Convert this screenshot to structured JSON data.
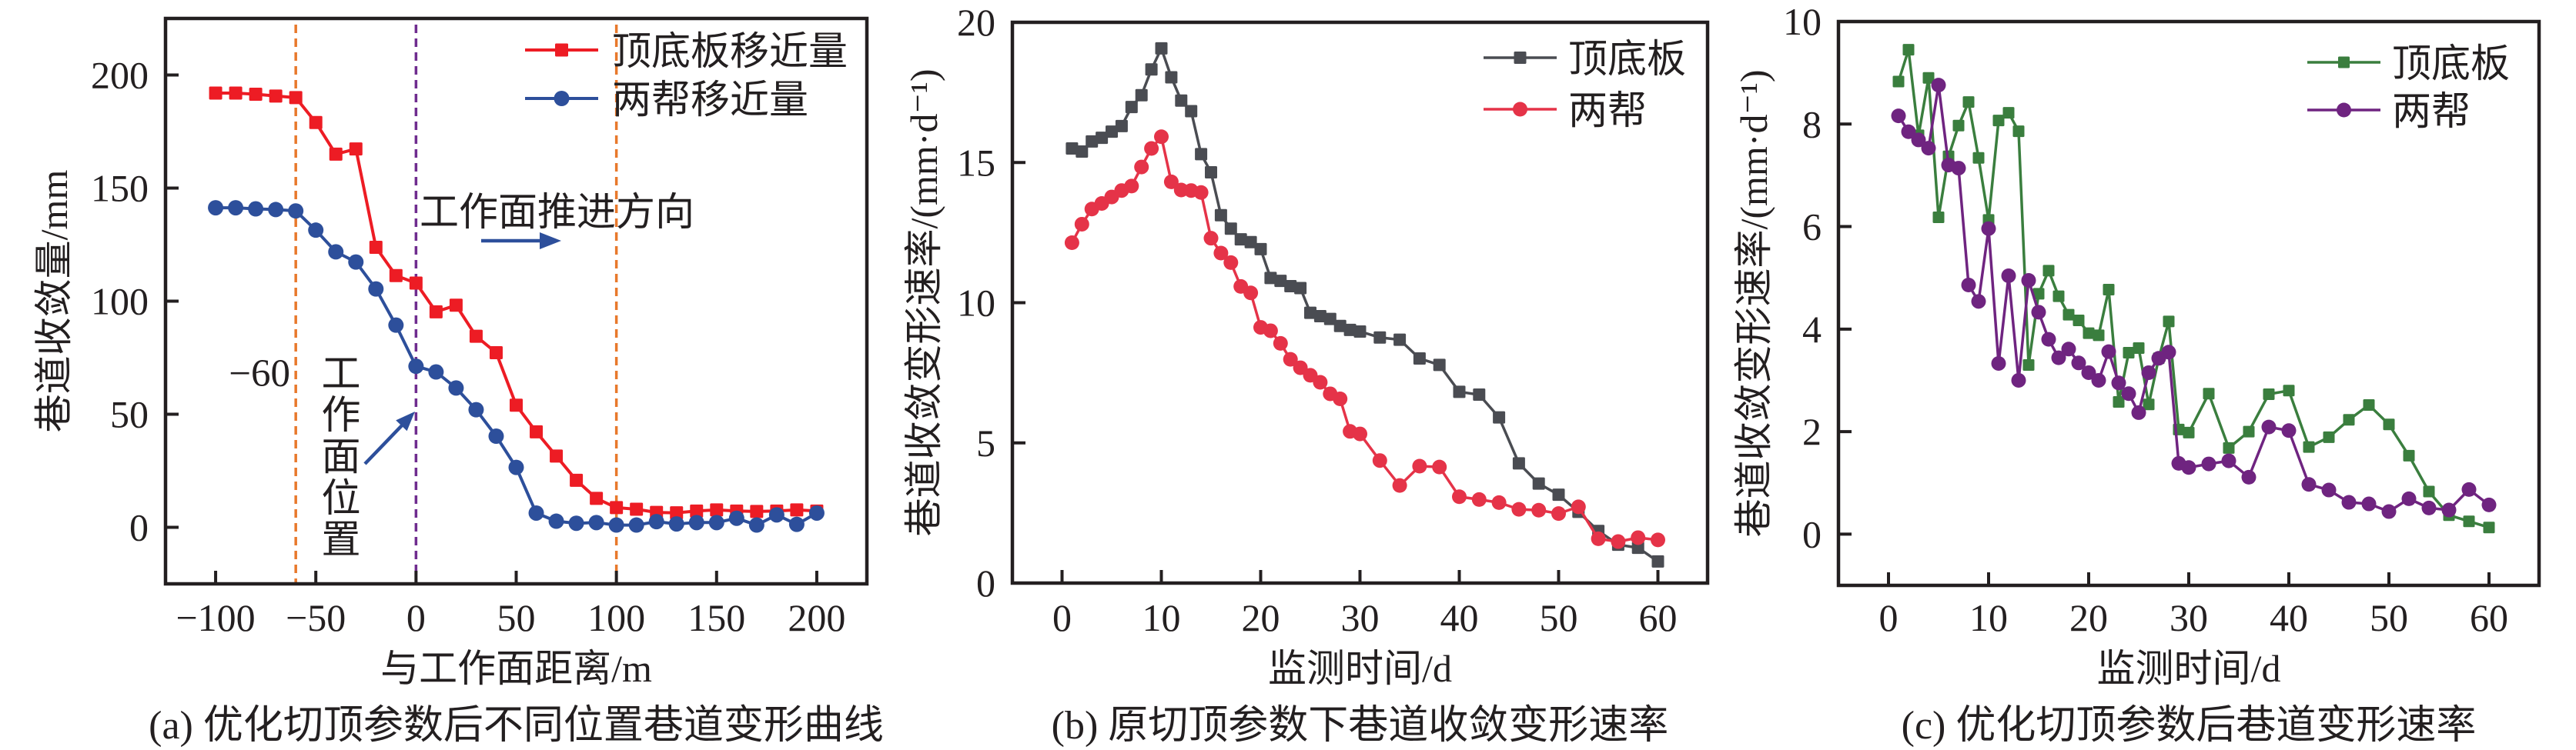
{
  "figure": {
    "text_color": "#231f20",
    "axis_color": "#231f20"
  },
  "chart_data": [
    {
      "id": "a",
      "type": "line",
      "title": "(a) 优化切顶参数后不同位置巷道变形曲线",
      "xlabel": "与工作面距离/m",
      "ylabel": "巷道收敛量/mm",
      "xlim": [
        -125,
        225
      ],
      "ylim": [
        -25,
        225
      ],
      "xticks": [
        -100,
        -50,
        0,
        50,
        100,
        150,
        200
      ],
      "xtick_labels": [
        "−100",
        "−50",
        "0",
        "50",
        "100",
        "150",
        "200"
      ],
      "yticks": [
        0,
        50,
        100,
        150,
        200
      ],
      "ytick_labels": [
        "0",
        "50",
        "100",
        "150",
        "200"
      ],
      "grid": false,
      "legend_position": "top-right",
      "x": [
        -100,
        -90,
        -80,
        -70,
        -60,
        -50,
        -40,
        -30,
        -20,
        -10,
        0,
        10,
        20,
        30,
        40,
        50,
        60,
        70,
        80,
        90,
        100,
        110,
        120,
        130,
        140,
        150,
        160,
        170,
        180,
        190,
        200
      ],
      "series": [
        {
          "name": "顶底板移近量",
          "marker": "square",
          "color": "#ed1c24",
          "values": [
            192.0,
            192.0,
            191.5,
            190.7,
            190.0,
            179.0,
            165.0,
            167.3,
            123.8,
            111.3,
            108.0,
            95.3,
            98.2,
            84.5,
            77.2,
            54.0,
            42.2,
            31.5,
            20.8,
            12.8,
            8.7,
            8.0,
            6.6,
            6.4,
            7.2,
            7.7,
            7.2,
            7.0,
            7.2,
            7.7,
            7.2
          ]
        },
        {
          "name": "两帮移近量",
          "marker": "circle",
          "color": "#2d4f9b",
          "values": [
            141.3,
            141.3,
            140.8,
            140.5,
            139.9,
            131.4,
            121.8,
            117.3,
            105.4,
            89.4,
            71.2,
            68.7,
            61.6,
            52.0,
            40.3,
            26.5,
            6.3,
            2.7,
            1.8,
            2.1,
            1.0,
            1.0,
            2.5,
            1.5,
            2.1,
            2.1,
            4.0,
            1.0,
            5.5,
            1.3,
            6.3
          ]
        }
      ],
      "reference_lines": [
        {
          "x": -60,
          "color": "#e8792c",
          "style": "dashed"
        },
        {
          "x": 0,
          "color": "#6f2c8f",
          "style": "dashed"
        },
        {
          "x": 100,
          "color": "#e8792c",
          "style": "dashed"
        }
      ],
      "annotations": [
        {
          "text": "−60"
        },
        {
          "text": "工作面位置"
        },
        {
          "text": "工作面推进方向"
        }
      ],
      "annotation_arrow_color": "#2d4f9b"
    },
    {
      "id": "b",
      "type": "line",
      "title": "(b) 原切顶参数下巷道收敛变形速率",
      "xlabel": "监测时间/d",
      "ylabel": "巷道收敛变形速率/(mm·d⁻¹)",
      "xlim": [
        -5,
        65
      ],
      "ylim": [
        0,
        20
      ],
      "xticks": [
        0,
        10,
        20,
        30,
        40,
        50,
        60
      ],
      "xtick_labels": [
        "0",
        "10",
        "20",
        "30",
        "40",
        "50",
        "60"
      ],
      "yticks": [
        0,
        5,
        10,
        15,
        20
      ],
      "ytick_labels": [
        "0",
        "5",
        "10",
        "15",
        "20"
      ],
      "grid": false,
      "legend_position": "top-right",
      "x": [
        1,
        2,
        3,
        4,
        5,
        6,
        7,
        8,
        9,
        10,
        11,
        12,
        13,
        14,
        15,
        16,
        17,
        18,
        19,
        20,
        21,
        22,
        23,
        24,
        25,
        26,
        27,
        28,
        29,
        30,
        32,
        34,
        36,
        38,
        40,
        42,
        44,
        46,
        48,
        50,
        52,
        54,
        56,
        58,
        60
      ],
      "series": [
        {
          "name": "顶底板",
          "marker": "square",
          "color": "#4a4c52",
          "values": [
            15.5,
            15.39,
            15.75,
            15.88,
            16.1,
            16.3,
            16.98,
            17.4,
            18.32,
            19.07,
            18.04,
            17.21,
            16.83,
            15.3,
            14.65,
            13.12,
            12.64,
            12.26,
            12.16,
            11.91,
            10.88,
            10.78,
            10.59,
            10.52,
            9.64,
            9.52,
            9.42,
            9.17,
            9.03,
            8.97,
            8.76,
            8.68,
            8.01,
            7.78,
            6.82,
            6.72,
            5.91,
            4.27,
            3.55,
            3.15,
            2.54,
            1.86,
            1.37,
            1.26,
            0.77
          ]
        },
        {
          "name": "两帮",
          "marker": "circle",
          "color": "#e53348",
          "values": [
            12.14,
            12.8,
            13.34,
            13.54,
            13.77,
            14.0,
            14.16,
            14.84,
            15.5,
            15.92,
            14.31,
            14.02,
            14.0,
            13.93,
            12.3,
            11.77,
            11.43,
            10.58,
            10.35,
            9.12,
            9.0,
            8.55,
            7.98,
            7.68,
            7.41,
            7.16,
            6.75,
            6.57,
            5.41,
            5.32,
            4.37,
            3.48,
            4.17,
            4.14,
            3.08,
            2.98,
            2.87,
            2.63,
            2.6,
            2.48,
            2.72,
            1.58,
            1.48,
            1.62,
            1.54
          ]
        }
      ]
    },
    {
      "id": "c",
      "type": "line",
      "title": "(c) 优化切顶参数后巷道变形速率",
      "xlabel": "监测时间/d",
      "ylabel": "巷道收敛变形速率/(mm·d⁻¹)",
      "xlim": [
        -5,
        65
      ],
      "ylim": [
        -1,
        10
      ],
      "xticks": [
        0,
        10,
        20,
        30,
        40,
        50,
        60
      ],
      "xtick_labels": [
        "0",
        "10",
        "20",
        "30",
        "40",
        "50",
        "60"
      ],
      "yticks": [
        0,
        2,
        4,
        6,
        8,
        10
      ],
      "ytick_labels": [
        "0",
        "2",
        "4",
        "6",
        "8",
        "10"
      ],
      "grid": false,
      "legend_position": "top-right",
      "x": [
        1,
        2,
        3,
        4,
        5,
        6,
        7,
        8,
        9,
        10,
        11,
        12,
        13,
        14,
        15,
        16,
        17,
        18,
        19,
        20,
        21,
        22,
        23,
        24,
        25,
        26,
        27,
        28,
        29,
        30,
        32,
        34,
        36,
        38,
        40,
        42,
        44,
        46,
        48,
        50,
        52,
        54,
        56,
        58,
        60
      ],
      "series": [
        {
          "name": "顶底板",
          "marker": "square",
          "color": "#3a7e3e",
          "values": [
            8.83,
            9.45,
            7.78,
            8.9,
            6.18,
            7.37,
            7.97,
            8.43,
            7.34,
            6.13,
            8.07,
            8.22,
            7.86,
            3.3,
            4.69,
            5.14,
            4.64,
            4.28,
            4.17,
            3.92,
            3.88,
            4.77,
            2.58,
            3.54,
            3.63,
            2.53,
            3.43,
            4.15,
            2.04,
            1.98,
            2.74,
            1.68,
            2.0,
            2.73,
            2.8,
            1.7,
            1.89,
            2.23,
            2.52,
            2.14,
            1.53,
            0.83,
            0.37,
            0.25,
            0.13
          ]
        },
        {
          "name": "两帮",
          "marker": "circle",
          "color": "#6f2480",
          "values": [
            8.16,
            7.85,
            7.69,
            7.53,
            8.76,
            7.2,
            7.14,
            4.86,
            4.54,
            5.96,
            3.33,
            5.04,
            3.0,
            4.95,
            4.33,
            3.8,
            3.44,
            3.61,
            3.34,
            3.15,
            3.0,
            3.56,
            2.95,
            2.74,
            2.37,
            3.15,
            3.43,
            3.55,
            1.38,
            1.3,
            1.37,
            1.43,
            1.11,
            2.09,
            2.02,
            0.97,
            0.86,
            0.62,
            0.59,
            0.44,
            0.69,
            0.51,
            0.47,
            0.87,
            0.57
          ]
        }
      ]
    }
  ]
}
